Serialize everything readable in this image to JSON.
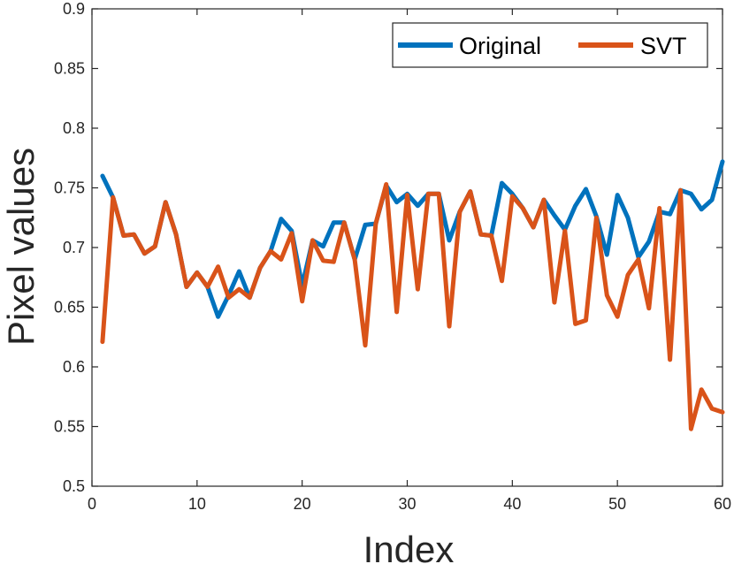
{
  "chart_data": {
    "type": "line",
    "xlabel": "Index",
    "ylabel": "Pixel values",
    "xlim": [
      0,
      60
    ],
    "ylim": [
      0.5,
      0.9
    ],
    "xticks": [
      0,
      10,
      20,
      30,
      40,
      50,
      60
    ],
    "yticks": [
      0.5,
      0.55,
      0.6,
      0.65,
      0.7,
      0.75,
      0.8,
      0.85,
      0.9
    ],
    "xtick_labels": [
      "0",
      "10",
      "20",
      "30",
      "40",
      "50",
      "60"
    ],
    "ytick_labels": [
      "0.5",
      "0.55",
      "0.6",
      "0.65",
      "0.7",
      "0.75",
      "0.8",
      "0.85",
      "0.9"
    ],
    "grid": false,
    "legend_position": "top-right",
    "x": [
      1,
      2,
      3,
      4,
      5,
      6,
      7,
      8,
      9,
      10,
      11,
      12,
      13,
      14,
      15,
      16,
      17,
      18,
      19,
      20,
      21,
      22,
      23,
      24,
      25,
      26,
      27,
      28,
      29,
      30,
      31,
      32,
      33,
      34,
      35,
      36,
      37,
      38,
      39,
      40,
      41,
      42,
      43,
      44,
      45,
      46,
      47,
      48,
      49,
      50,
      51,
      52,
      53,
      54,
      55,
      56,
      57,
      58,
      59,
      60
    ],
    "series": [
      {
        "name": "Original",
        "color": "#0072BD",
        "values": [
          0.76,
          0.742,
          0.71,
          0.711,
          0.695,
          0.701,
          0.738,
          0.711,
          0.667,
          0.679,
          0.667,
          0.642,
          0.66,
          0.68,
          0.658,
          0.683,
          0.697,
          0.724,
          0.714,
          0.668,
          0.706,
          0.701,
          0.721,
          0.721,
          0.69,
          0.719,
          0.72,
          0.752,
          0.738,
          0.745,
          0.735,
          0.745,
          0.745,
          0.706,
          0.73,
          0.747,
          0.711,
          0.71,
          0.754,
          0.745,
          0.733,
          0.717,
          0.74,
          0.727,
          0.715,
          0.735,
          0.749,
          0.726,
          0.694,
          0.744,
          0.725,
          0.692,
          0.705,
          0.73,
          0.728,
          0.748,
          0.745,
          0.732,
          0.74,
          0.772
        ]
      },
      {
        "name": "SVT",
        "color": "#D95319",
        "values": [
          0.621,
          0.742,
          0.71,
          0.711,
          0.695,
          0.701,
          0.738,
          0.711,
          0.667,
          0.679,
          0.667,
          0.684,
          0.658,
          0.665,
          0.658,
          0.683,
          0.697,
          0.69,
          0.712,
          0.655,
          0.706,
          0.689,
          0.688,
          0.721,
          0.69,
          0.618,
          0.72,
          0.753,
          0.646,
          0.744,
          0.665,
          0.745,
          0.745,
          0.634,
          0.73,
          0.747,
          0.711,
          0.71,
          0.672,
          0.743,
          0.733,
          0.717,
          0.74,
          0.654,
          0.714,
          0.636,
          0.639,
          0.725,
          0.66,
          0.642,
          0.677,
          0.69,
          0.649,
          0.733,
          0.606,
          0.748,
          0.548,
          0.581,
          0.565,
          0.562
        ]
      }
    ]
  }
}
